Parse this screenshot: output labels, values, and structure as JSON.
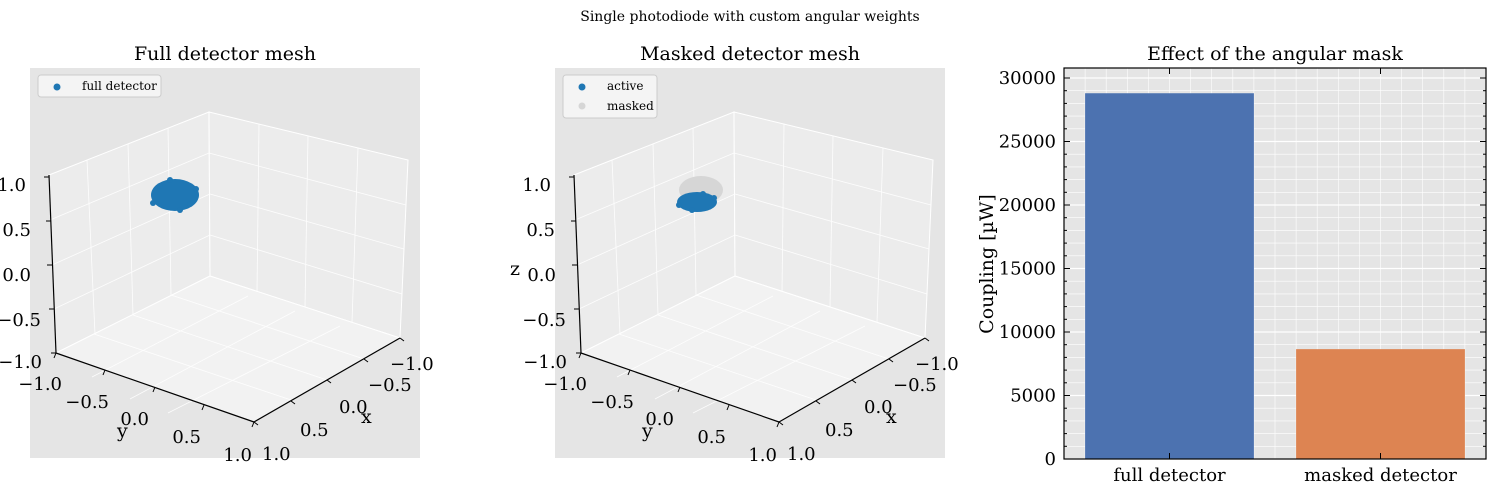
{
  "suptitle": "Single photodiode with custom angular weights",
  "panels": {
    "full": {
      "title": "Full detector mesh",
      "legend": [
        "full detector"
      ],
      "x_ticks": [
        "−1.0",
        "−0.5",
        "0.0",
        "0.5",
        "1.0"
      ],
      "y_ticks": [
        "−1.0",
        "−0.5",
        "0.0",
        "0.5",
        "1.0"
      ],
      "z_ticks": [
        "1.0",
        "0.5",
        "0.0",
        "−0.5",
        "−1.0"
      ],
      "xlabel": "x",
      "ylabel": "y",
      "zlabel": ""
    },
    "masked": {
      "title": "Masked detector mesh",
      "legend": [
        "active",
        "masked"
      ],
      "x_ticks": [
        "−1.0",
        "−0.5",
        "0.0",
        "0.5",
        "1.0"
      ],
      "y_ticks": [
        "−1.0",
        "−0.5",
        "0.0",
        "0.5",
        "1.0"
      ],
      "z_ticks": [
        "1.0",
        "0.5",
        "0.0",
        "−0.5",
        "−1.0"
      ],
      "xlabel": "x",
      "ylabel": "y",
      "zlabel": "z"
    }
  },
  "colors": {
    "pane": "#e5e5e5",
    "active": "#1f77b4",
    "masked": "#d6d6d6",
    "bar_full": "#4c72b0",
    "bar_masked": "#dd8452"
  },
  "chart_data": {
    "type": "bar",
    "title": "Effect of the angular mask",
    "categories": [
      "full detector",
      "masked detector"
    ],
    "values": [
      28800,
      8650
    ],
    "xlabel": "",
    "ylabel": "Coupling [µW]",
    "ylim": [
      0,
      30000
    ],
    "yticks": [
      0,
      5000,
      10000,
      15000,
      20000,
      25000,
      30000
    ],
    "grid": true
  }
}
